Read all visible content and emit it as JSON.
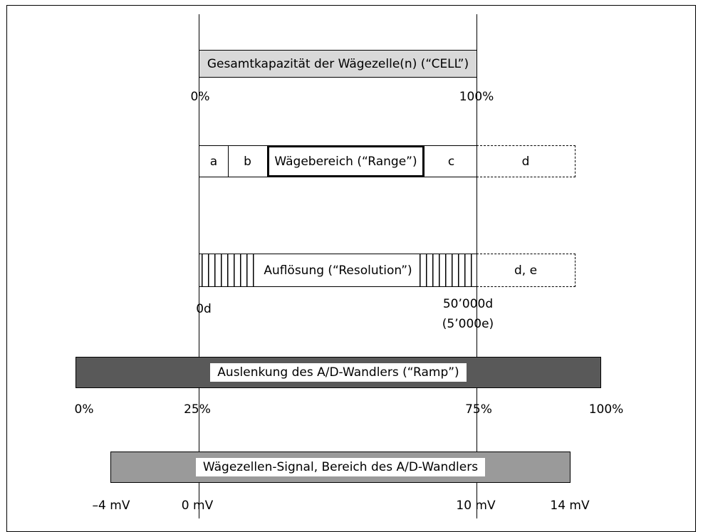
{
  "cell_bar": {
    "label": "Gesamtkapazität der Wägezelle(n) (“CELL”)",
    "pct_start": "0%",
    "pct_end": "100%"
  },
  "range_bar": {
    "seg_a": "a",
    "seg_b": "b",
    "range_label": "Wägebereich (“Range”)",
    "seg_c": "c",
    "seg_d": "d"
  },
  "resolution_bar": {
    "label": "Auflösung (“Resolution”)",
    "seg_de": "d, e",
    "start": "0d",
    "end": "50’000d",
    "end_sub": "(5’000e)"
  },
  "ramp_bar": {
    "label": "Auslenkung des A/D-Wandlers (“Ramp”)",
    "ticks": [
      "0%",
      "25%",
      "75%",
      "100%"
    ]
  },
  "signal_bar": {
    "label": "Wägezellen-Signal, Bereich des A/D-Wandlers",
    "ticks": [
      "–4 mV",
      "0 mV",
      "10 mV",
      "14 mV"
    ]
  },
  "colors": {
    "cell_fill": "#d9d9d9",
    "ramp_fill": "#595959",
    "signal_fill": "#9a9a9a"
  }
}
